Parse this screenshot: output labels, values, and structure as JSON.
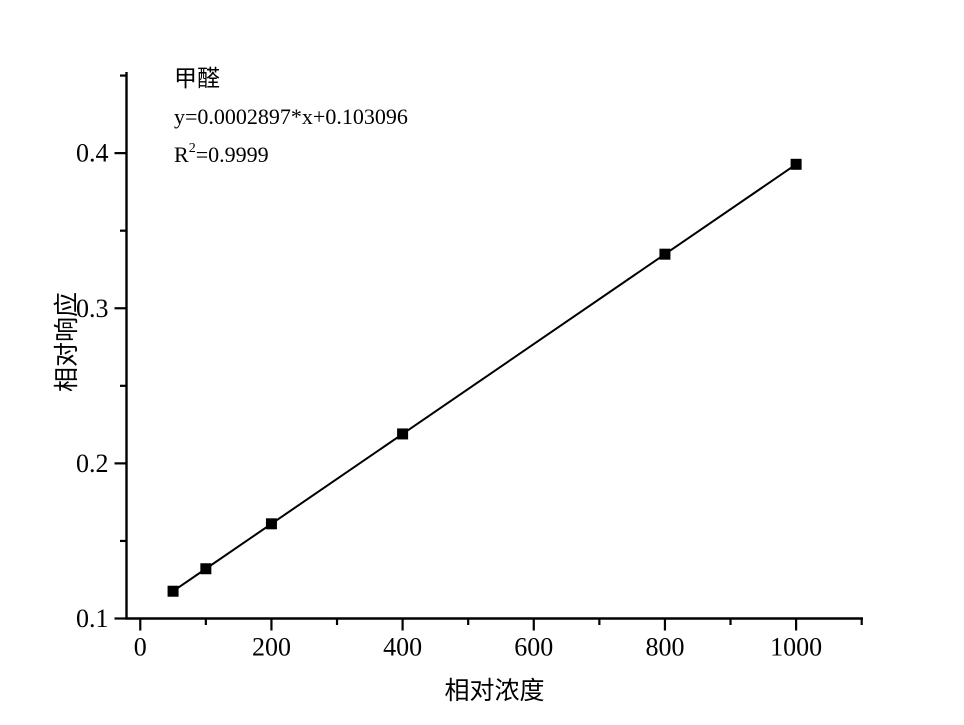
{
  "chart_data": {
    "type": "scatter",
    "title": "",
    "series": [
      {
        "name": "甲醛",
        "x": [
          50,
          100,
          200,
          400,
          800,
          1000
        ],
        "y": [
          0.11758,
          0.13207,
          0.16104,
          0.21898,
          0.33486,
          0.3928
        ],
        "marker": "filled-square",
        "marker_size_px": 11,
        "line": "straight-fit-line-through-points"
      }
    ],
    "fit": {
      "analyte": "甲醛",
      "equation": "y=0.0002897*x+0.103096",
      "slope": 0.0002897,
      "intercept": 0.103096,
      "r_squared": 0.9999
    },
    "xlabel": "相对浓度",
    "ylabel": "相对响应",
    "x_axis": {
      "range": [
        -21,
        1102
      ],
      "major_ticks": [
        0,
        200,
        400,
        600,
        800,
        1000
      ],
      "minor_ticks": [
        100,
        300,
        500,
        700,
        900,
        1100
      ],
      "tick_labels": [
        "0",
        "200",
        "400",
        "600",
        "800",
        "1000"
      ]
    },
    "y_axis": {
      "range": [
        0.1,
        0.4523
      ],
      "major_ticks": [
        0.1,
        0.2,
        0.3,
        0.4
      ],
      "minor_ticks": [
        0.15,
        0.25,
        0.35,
        0.45
      ],
      "tick_labels": [
        "0.1",
        "0.2",
        "0.3",
        "0.4"
      ]
    },
    "grid": false,
    "legend_position": "none",
    "tick_direction": "out",
    "colors": {
      "axis": "#000000",
      "line": "#000000",
      "marker": "#000000",
      "text": "#000000",
      "background": "#ffffff"
    }
  },
  "annotation": {
    "title": "甲醛",
    "equation": "y=0.0002897*x+0.103096",
    "r_base": "R",
    "r_exponent": "2",
    "r_rest": "=0.9999"
  }
}
